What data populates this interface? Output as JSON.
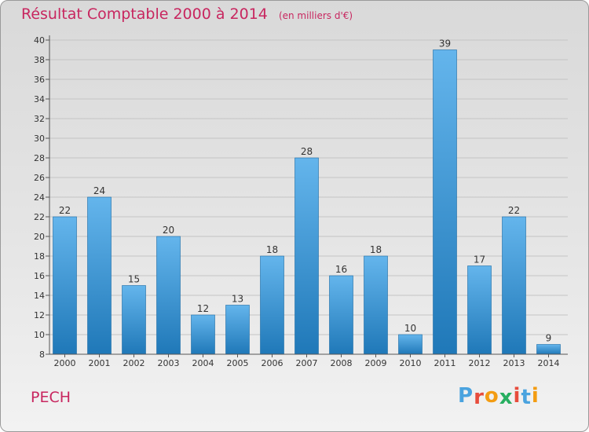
{
  "header": {
    "title": "Résultat Comptable 2000 à 2014",
    "subtitle": "(en milliers d'€)"
  },
  "footer": {
    "commune": "PECH",
    "logo": "Proxiti",
    "logo_colors": [
      "#4aa3df",
      "#e74c3c",
      "#f39c12",
      "#27ae60",
      "#e74c3c",
      "#4aa3df",
      "#f39c12"
    ]
  },
  "colors": {
    "bar_light": "#64b5ec",
    "bar_dark": "#1f78b8",
    "grid": "#c4c4c4",
    "axis": "#555555"
  },
  "chart_data": {
    "type": "bar",
    "title": "Résultat Comptable 2000 à 2014",
    "subtitle": "(en milliers d'€)",
    "xlabel": "",
    "ylabel": "",
    "categories": [
      "2000",
      "2001",
      "2002",
      "2003",
      "2004",
      "2005",
      "2006",
      "2007",
      "2008",
      "2009",
      "2010",
      "2011",
      "2012",
      "2013",
      "2014"
    ],
    "values": [
      22,
      24,
      15,
      20,
      12,
      13,
      18,
      28,
      16,
      18,
      10,
      39,
      17,
      22,
      9
    ],
    "ylim": [
      8,
      40
    ],
    "yticks": [
      8,
      10,
      12,
      14,
      16,
      18,
      20,
      22,
      24,
      26,
      28,
      30,
      32,
      34,
      36,
      38,
      40
    ],
    "grid": true,
    "data_labels": true
  }
}
